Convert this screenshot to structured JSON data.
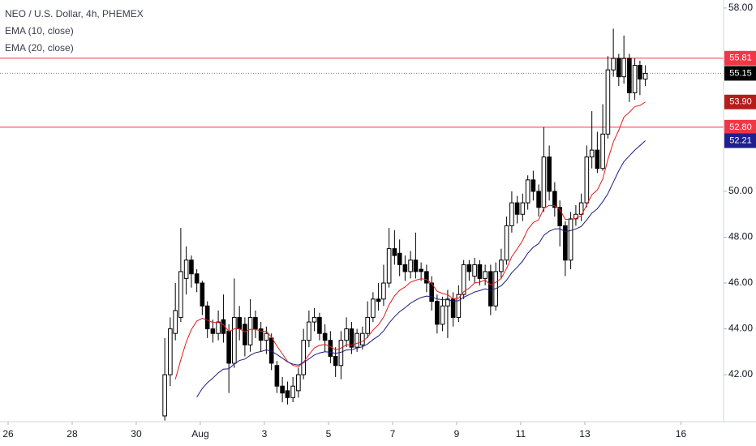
{
  "chart_data": {
    "type": "candlestick",
    "title": "NEO / U.S. Dollar, 4h, PHEMEX",
    "up_color": "#ffffff",
    "down_color": "#000000",
    "x": [
      4.89,
      5.06,
      5.22,
      5.39,
      5.56,
      5.72,
      5.89,
      6.06,
      6.22,
      6.39,
      6.56,
      6.72,
      6.89,
      7.06,
      7.22,
      7.39,
      7.56,
      7.72,
      7.89,
      8.06,
      8.22,
      8.39,
      8.56,
      8.72,
      8.89,
      9.06,
      9.22,
      9.39,
      9.56,
      9.72,
      9.89,
      10.06,
      10.22,
      10.39,
      10.56,
      10.72,
      10.89,
      11.06,
      11.22,
      11.39,
      11.56,
      11.72,
      11.89,
      12.06,
      12.22,
      12.39,
      12.56,
      12.72,
      12.89,
      13.06,
      13.22,
      13.39,
      13.56,
      13.72,
      13.89,
      14.06,
      14.22,
      14.39,
      14.56,
      14.72,
      14.89,
      15.06,
      15.22,
      15.39,
      15.56,
      15.72,
      15.89,
      16.06,
      16.22,
      16.39,
      16.56,
      16.72,
      16.89,
      17.06,
      17.22,
      17.39,
      17.56,
      17.72,
      17.89,
      18.06,
      18.22,
      18.39,
      18.56,
      18.72,
      18.89,
      19.06,
      19.22,
      19.39,
      19.56,
      19.72,
      19.89
    ],
    "open": [
      40.2,
      42,
      43.8,
      44.5,
      46.2,
      47.0,
      46.4,
      46.0,
      45.0,
      44.0,
      43.8,
      44.4,
      43.9,
      42.5,
      44.5,
      44.2,
      43.3,
      44.5,
      44.0,
      43.5,
      43.6,
      42.4,
      41.5,
      41.3,
      41.0,
      41.3,
      42.0,
      43.5,
      44.3,
      44.5,
      43.8,
      43.5,
      42.8,
      42.4,
      43.5,
      44.0,
      43.2,
      43.3,
      43.8,
      44.5,
      45.3,
      45.3,
      46.0,
      47.5,
      47.3,
      46.8,
      46.5,
      47.0,
      46.6,
      46.5,
      46.0,
      45.2,
      44.2,
      45.0,
      45.3,
      44.5,
      45.5,
      46.8,
      46.3,
      46.8,
      46.2,
      46.5,
      45.0,
      46.5,
      47.0,
      48.5,
      49.5,
      49.0,
      49.5,
      50.5,
      50.0,
      49.3,
      51.5,
      50.0,
      49.3,
      48.5,
      47.0,
      48.8,
      49.0,
      49.5,
      51.5,
      51.8,
      51.0,
      52.5,
      55.3,
      55.8,
      55.0,
      55.8,
      54.3,
      55.5,
      54.9
    ],
    "high": [
      43.6,
      44.5,
      46.0,
      48.4,
      47.6,
      47.2,
      46.6,
      46.1,
      45.2,
      44.4,
      44.8,
      45.5,
      44.2,
      46.2,
      45.0,
      44.5,
      45.3,
      44.8,
      44.3,
      44.1,
      43.8,
      42.6,
      41.9,
      41.7,
      41.9,
      42.3,
      44.0,
      44.8,
      44.9,
      44.7,
      44.2,
      43.9,
      43.2,
      43.9,
      44.5,
      44.3,
      44.0,
      44.1,
      45.2,
      45.6,
      46.0,
      46.8,
      48.4,
      48.3,
      47.9,
      47.2,
      47.4,
      48.2,
      46.9,
      46.8,
      46.3,
      45.5,
      45.4,
      45.7,
      45.6,
      45.9,
      47.0,
      47.0,
      47.1,
      47.0,
      46.8,
      46.8,
      46.9,
      47.5,
      48.9,
      50.0,
      49.8,
      49.9,
      50.7,
      50.9,
      50.3,
      52.8,
      52.0,
      50.4,
      49.6,
      48.7,
      49.1,
      49.4,
      49.9,
      52.0,
      53.5,
      52.6,
      53.8,
      55.9,
      57.1,
      56.0,
      56.8,
      56.0,
      55.8,
      55.7,
      55.5
    ],
    "low": [
      40.0,
      41.5,
      43.5,
      44.3,
      45.5,
      45.8,
      45.6,
      44.6,
      43.6,
      43.4,
      43.5,
      43.4,
      41.2,
      42.3,
      43.5,
      42.8,
      43.0,
      43.6,
      43.0,
      42.9,
      42.2,
      41.2,
      40.8,
      40.7,
      40.8,
      41.0,
      41.8,
      43.2,
      43.9,
      43.5,
      43.0,
      42.5,
      41.9,
      41.8,
      43.2,
      42.9,
      43.0,
      43.1,
      43.6,
      44.3,
      44.8,
      45.0,
      45.8,
      46.8,
      46.3,
      46.1,
      46.2,
      46.2,
      46.1,
      45.6,
      44.8,
      43.8,
      43.9,
      43.6,
      44.1,
      44.3,
      45.3,
      46.1,
      46.0,
      45.9,
      45.9,
      44.6,
      44.8,
      46.2,
      46.8,
      48.2,
      48.6,
      48.7,
      49.2,
      49.6,
      48.9,
      49.1,
      49.6,
      48.9,
      47.6,
      46.3,
      46.6,
      48.5,
      48.7,
      49.3,
      51.0,
      50.8,
      50.9,
      52.3,
      55.0,
      54.6,
      54.7,
      53.9,
      54.0,
      54.2,
      54.6
    ],
    "close": [
      42.0,
      44.0,
      44.8,
      46.5,
      47.0,
      46.4,
      46.0,
      45.0,
      44.0,
      43.8,
      44.3,
      43.8,
      42.5,
      44.5,
      44.0,
      43.3,
      44.5,
      44.0,
      43.5,
      43.8,
      42.5,
      41.5,
      41.2,
      41.0,
      41.5,
      42.0,
      43.5,
      44.3,
      44.5,
      43.8,
      43.5,
      42.8,
      42.4,
      43.5,
      44.0,
      43.2,
      43.8,
      43.8,
      44.5,
      45.3,
      45.2,
      46.0,
      47.5,
      47.2,
      46.8,
      46.5,
      47.0,
      46.5,
      46.5,
      46.0,
      45.2,
      44.2,
      45.0,
      45.3,
      44.5,
      45.5,
      46.8,
      46.5,
      46.8,
      46.2,
      46.5,
      45.0,
      46.5,
      47.0,
      48.5,
      49.5,
      49.0,
      49.5,
      50.5,
      50.0,
      49.3,
      51.5,
      50.0,
      49.3,
      48.5,
      47.0,
      48.8,
      49.0,
      49.5,
      51.5,
      51.8,
      51.0,
      52.5,
      55.3,
      55.8,
      55.0,
      55.8,
      54.3,
      55.5,
      54.9,
      55.15
    ],
    "series": [
      {
        "name": "EMA (10, close)",
        "color": "#e51c1c",
        "badge_color": "#b71c1c",
        "last_label": "53.90",
        "values": [
          null,
          null,
          41.8,
          42.65,
          43.43,
          43.97,
          44.34,
          44.46,
          44.38,
          44.28,
          44.28,
          44.18,
          43.88,
          44.0,
          44.0,
          43.87,
          43.98,
          43.98,
          43.9,
          43.89,
          43.64,
          43.25,
          42.91,
          42.58,
          42.41,
          42.34,
          42.55,
          42.87,
          43.17,
          43.28,
          43.32,
          43.23,
          43.08,
          43.16,
          43.31,
          43.28,
          43.37,
          43.45,
          43.64,
          43.95,
          44.18,
          44.51,
          45.05,
          45.44,
          45.68,
          45.83,
          46.04,
          46.12,
          46.19,
          46.15,
          45.98,
          45.64,
          45.54,
          45.49,
          45.31,
          45.34,
          45.62,
          45.78,
          46.0,
          46.04,
          46.13,
          45.92,
          46.03,
          46.2,
          46.64,
          47.15,
          47.49,
          47.86,
          48.34,
          48.64,
          48.76,
          49.26,
          49.39,
          49.37,
          49.21,
          48.78,
          48.78,
          48.82,
          48.94,
          49.41,
          49.85,
          50.06,
          50.54,
          51.39,
          52.15,
          52.67,
          53.24,
          53.45,
          53.7,
          53.75,
          53.9
        ]
      },
      {
        "name": "EMA (20, close)",
        "color": "#1a1a80",
        "badge_color": "#1f1f8f",
        "last_label": "52.21",
        "values": [
          null,
          null,
          null,
          null,
          null,
          null,
          41.02,
          41.4,
          41.65,
          41.85,
          42.08,
          42.24,
          42.26,
          42.47,
          42.62,
          42.68,
          42.85,
          42.96,
          43.01,
          43.08,
          43.03,
          42.88,
          42.72,
          42.56,
          42.46,
          42.42,
          42.52,
          42.69,
          42.86,
          42.95,
          43.0,
          42.98,
          42.93,
          42.98,
          43.08,
          43.09,
          43.16,
          43.22,
          43.34,
          43.53,
          43.69,
          43.91,
          44.25,
          44.53,
          44.75,
          44.92,
          45.12,
          45.25,
          45.37,
          45.43,
          45.41,
          45.3,
          45.27,
          45.27,
          45.2,
          45.23,
          45.38,
          45.49,
          45.61,
          45.67,
          45.75,
          45.68,
          45.76,
          45.88,
          46.13,
          46.45,
          46.69,
          46.96,
          47.3,
          47.56,
          47.72,
          48.08,
          48.26,
          48.36,
          48.37,
          48.24,
          48.29,
          48.36,
          48.47,
          48.76,
          49.05,
          49.24,
          49.55,
          49.9,
          50.4,
          50.9,
          51.3,
          51.55,
          51.8,
          52.0,
          52.21
        ]
      }
    ],
    "hlines": [
      {
        "value": 55.81,
        "label": "55.81",
        "color": "#f23645"
      },
      {
        "value": 52.8,
        "label": "52.80",
        "color": "#f23645"
      }
    ],
    "last_price": {
      "value": 55.15,
      "label": "55.15",
      "color": "#000000"
    },
    "xlim": [
      -0.253,
      22.33
    ],
    "ylim": [
      39.95,
      58.35
    ],
    "xticks": [
      {
        "value": 0,
        "label": "26"
      },
      {
        "value": 2,
        "label": "28"
      },
      {
        "value": 4,
        "label": "30"
      },
      {
        "value": 6,
        "label": "Aug"
      },
      {
        "value": 8,
        "label": "3"
      },
      {
        "value": 10,
        "label": "5"
      },
      {
        "value": 12,
        "label": "7"
      },
      {
        "value": 14,
        "label": "9"
      },
      {
        "value": 16,
        "label": "11"
      },
      {
        "value": 18,
        "label": "13"
      },
      {
        "value": 21,
        "label": "16"
      }
    ],
    "yticks": [
      {
        "value": 58,
        "label": "58.00"
      },
      {
        "value": 50,
        "label": "50.00"
      },
      {
        "value": 48,
        "label": "48.00"
      },
      {
        "value": 46,
        "label": "46.00"
      },
      {
        "value": 44,
        "label": "44.00"
      },
      {
        "value": 42,
        "label": "42.00"
      }
    ]
  }
}
